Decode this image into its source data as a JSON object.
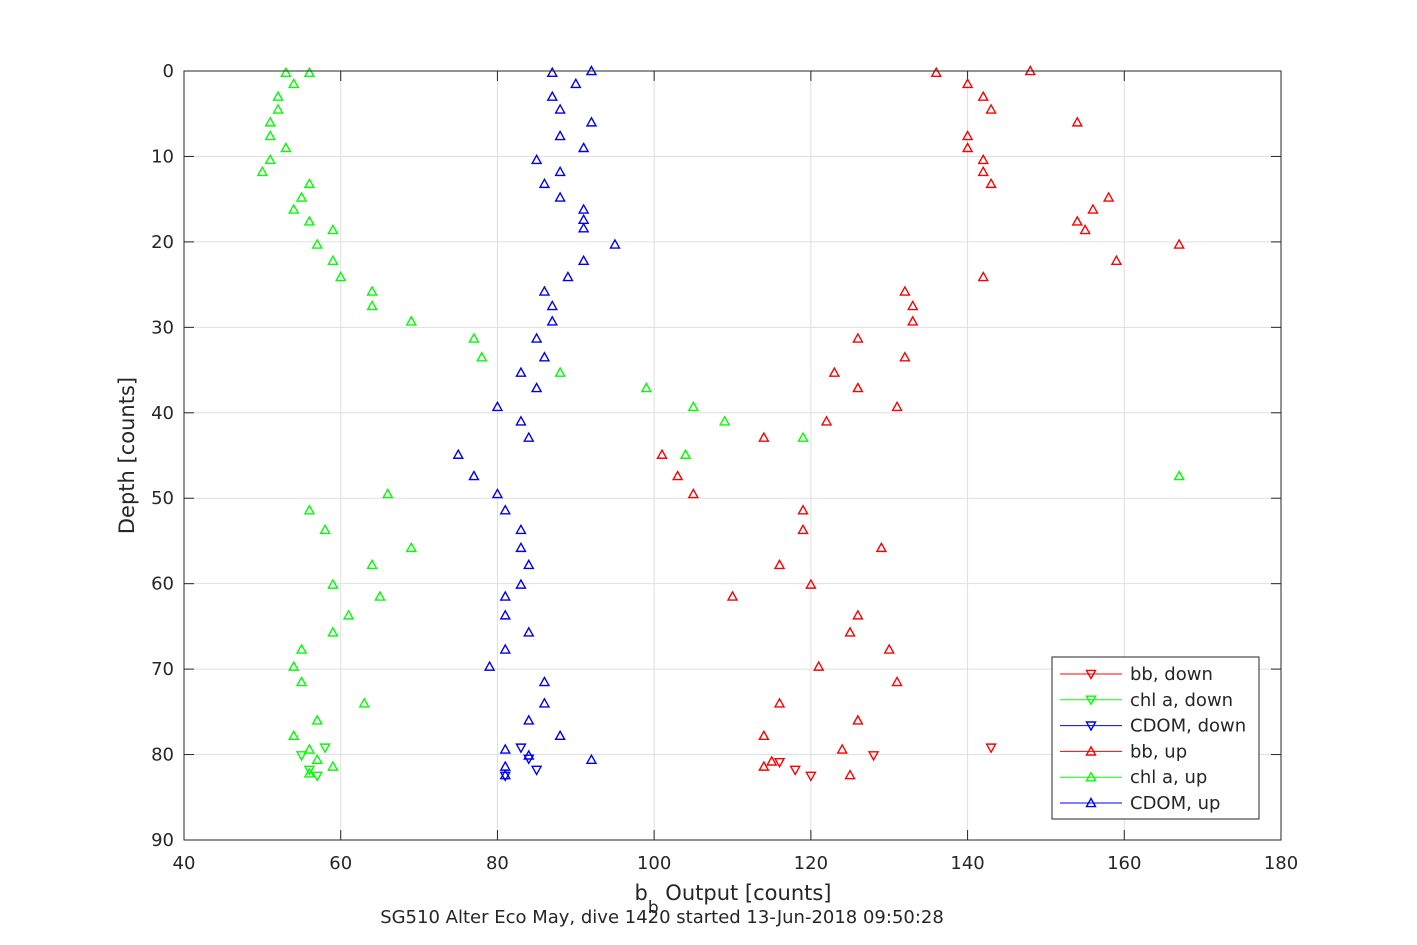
{
  "chart_data": {
    "type": "scatter",
    "xlabel_main": "b",
    "xlabel_sub": "b",
    "xlabel_rest": " Output [counts]",
    "ylabel": "Depth [counts]",
    "caption": "SG510 Alter Eco May, dive 1420 started 13-Jun-2018 09:50:28",
    "xlim": [
      40,
      180
    ],
    "ylim": [
      0,
      90
    ],
    "y_reversed": true,
    "grid": true,
    "legend_position": "bottom-right",
    "x_ticks": [
      40,
      60,
      80,
      100,
      120,
      140,
      160,
      180
    ],
    "y_ticks": [
      0,
      10,
      20,
      30,
      40,
      50,
      60,
      70,
      80,
      90
    ],
    "series": [
      {
        "name": "bb, down",
        "color": "#ff0000",
        "marker": "triangle-down",
        "points": [
          [
            143,
            79.2
          ],
          [
            118,
            81.8
          ],
          [
            120,
            82.5
          ],
          [
            116,
            80.9
          ],
          [
            128,
            80.1
          ]
        ]
      },
      {
        "name": "chl a, down",
        "color": "#00ff00",
        "marker": "triangle-down",
        "points": [
          [
            58,
            79.2
          ],
          [
            55,
            80.1
          ],
          [
            57,
            82.5
          ],
          [
            56,
            81.8
          ]
        ]
      },
      {
        "name": "CDOM, down",
        "color": "#0000ff",
        "marker": "triangle-down",
        "points": [
          [
            83,
            79.2
          ],
          [
            81,
            82.5
          ],
          [
            84,
            80.5
          ],
          [
            85,
            81.8
          ]
        ]
      },
      {
        "name": "bb, up",
        "color": "#ff0000",
        "marker": "triangle-up",
        "points": [
          [
            136,
            0.2
          ],
          [
            148,
            0
          ],
          [
            140,
            1.5
          ],
          [
            142,
            3
          ],
          [
            143,
            4.5
          ],
          [
            154,
            6
          ],
          [
            140,
            7.6
          ],
          [
            140,
            9
          ],
          [
            142,
            10.4
          ],
          [
            142,
            11.8
          ],
          [
            143,
            13.2
          ],
          [
            158,
            14.8
          ],
          [
            156,
            16.2
          ],
          [
            154,
            17.6
          ],
          [
            155,
            18.6
          ],
          [
            167,
            20.3
          ],
          [
            159,
            22.2
          ],
          [
            142,
            24.1
          ],
          [
            132,
            25.8
          ],
          [
            133,
            27.5
          ],
          [
            133,
            29.3
          ],
          [
            126,
            31.3
          ],
          [
            132,
            33.5
          ],
          [
            123,
            35.3
          ],
          [
            126,
            37.1
          ],
          [
            131,
            39.3
          ],
          [
            122,
            41
          ],
          [
            114,
            42.9
          ],
          [
            101,
            44.9
          ],
          [
            103,
            47.4
          ],
          [
            105,
            49.5
          ],
          [
            119,
            51.4
          ],
          [
            119,
            53.7
          ],
          [
            129,
            55.8
          ],
          [
            116,
            57.8
          ],
          [
            120,
            60.1
          ],
          [
            110,
            61.5
          ],
          [
            126,
            63.7
          ],
          [
            125,
            65.7
          ],
          [
            130,
            67.7
          ],
          [
            121,
            69.7
          ],
          [
            131,
            71.5
          ],
          [
            116,
            74
          ],
          [
            126,
            76
          ],
          [
            114,
            77.8
          ],
          [
            124,
            79.4
          ],
          [
            115,
            80.8
          ],
          [
            114,
            81.4
          ],
          [
            125,
            82.4
          ]
        ]
      },
      {
        "name": "chl a, up",
        "color": "#00ff00",
        "marker": "triangle-up",
        "points": [
          [
            53,
            0.2
          ],
          [
            56,
            0.2
          ],
          [
            54,
            1.5
          ],
          [
            52,
            3
          ],
          [
            52,
            4.5
          ],
          [
            51,
            6
          ],
          [
            51,
            7.6
          ],
          [
            53,
            9
          ],
          [
            51,
            10.4
          ],
          [
            50,
            11.8
          ],
          [
            56,
            13.2
          ],
          [
            55,
            14.8
          ],
          [
            54,
            16.2
          ],
          [
            56,
            17.6
          ],
          [
            59,
            18.6
          ],
          [
            57,
            20.3
          ],
          [
            59,
            22.2
          ],
          [
            60,
            24.1
          ],
          [
            64,
            25.8
          ],
          [
            64,
            27.5
          ],
          [
            69,
            29.3
          ],
          [
            77,
            31.3
          ],
          [
            78,
            33.5
          ],
          [
            88,
            35.3
          ],
          [
            99,
            37.1
          ],
          [
            105,
            39.3
          ],
          [
            109,
            41
          ],
          [
            119,
            42.9
          ],
          [
            104,
            44.9
          ],
          [
            167,
            47.4
          ],
          [
            66,
            49.5
          ],
          [
            56,
            51.4
          ],
          [
            58,
            53.7
          ],
          [
            69,
            55.8
          ],
          [
            64,
            57.8
          ],
          [
            59,
            60.1
          ],
          [
            65,
            61.5
          ],
          [
            61,
            63.7
          ],
          [
            59,
            65.7
          ],
          [
            55,
            67.7
          ],
          [
            54,
            69.7
          ],
          [
            55,
            71.5
          ],
          [
            63,
            74
          ],
          [
            57,
            76
          ],
          [
            54,
            77.8
          ],
          [
            56,
            79.4
          ],
          [
            57,
            80.6
          ],
          [
            59,
            81.4
          ],
          [
            56,
            82.2
          ]
        ]
      },
      {
        "name": "CDOM, up",
        "color": "#0000ff",
        "marker": "triangle-up",
        "points": [
          [
            87,
            0.2
          ],
          [
            92,
            0
          ],
          [
            90,
            1.5
          ],
          [
            87,
            3
          ],
          [
            88,
            4.5
          ],
          [
            92,
            6
          ],
          [
            88,
            7.6
          ],
          [
            91,
            9
          ],
          [
            85,
            10.4
          ],
          [
            88,
            11.8
          ],
          [
            86,
            13.2
          ],
          [
            88,
            14.8
          ],
          [
            91,
            16.2
          ],
          [
            91,
            17.4
          ],
          [
            91,
            18.4
          ],
          [
            95,
            20.3
          ],
          [
            91,
            22.2
          ],
          [
            89,
            24.1
          ],
          [
            86,
            25.8
          ],
          [
            87,
            27.5
          ],
          [
            87,
            29.3
          ],
          [
            85,
            31.3
          ],
          [
            86,
            33.5
          ],
          [
            83,
            35.3
          ],
          [
            85,
            37.1
          ],
          [
            80,
            39.3
          ],
          [
            83,
            41
          ],
          [
            84,
            42.9
          ],
          [
            75,
            44.9
          ],
          [
            77,
            47.4
          ],
          [
            80,
            49.5
          ],
          [
            81,
            51.4
          ],
          [
            83,
            53.7
          ],
          [
            83,
            55.8
          ],
          [
            84,
            57.8
          ],
          [
            83,
            60.1
          ],
          [
            81,
            61.5
          ],
          [
            81,
            63.7
          ],
          [
            84,
            65.7
          ],
          [
            81,
            67.7
          ],
          [
            79,
            69.7
          ],
          [
            86,
            71.5
          ],
          [
            86,
            74
          ],
          [
            84,
            76
          ],
          [
            88,
            77.8
          ],
          [
            81,
            79.4
          ],
          [
            84,
            80.1
          ],
          [
            92,
            80.6
          ],
          [
            81,
            81.4
          ],
          [
            81,
            82.4
          ]
        ]
      }
    ]
  }
}
